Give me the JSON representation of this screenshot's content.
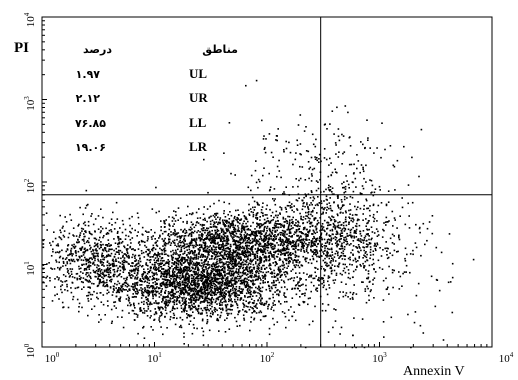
{
  "chart_data": {
    "type": "scatter",
    "xlabel": "Annexin V",
    "ylabel": "PI",
    "x_scale": "log",
    "y_scale": "log",
    "xlim": [
      1,
      10000
    ],
    "ylim": [
      1,
      10000
    ],
    "x_tick_labels": [
      {
        "base": "10",
        "exp": "0"
      },
      {
        "base": "10",
        "exp": "1"
      },
      {
        "base": "10",
        "exp": "2"
      },
      {
        "base": "10",
        "exp": "3"
      },
      {
        "base": "10",
        "exp": "4"
      }
    ],
    "y_tick_labels": [
      {
        "base": "10",
        "exp": "0"
      },
      {
        "base": "10",
        "exp": "1"
      },
      {
        "base": "10",
        "exp": "2"
      },
      {
        "base": "10",
        "exp": "3"
      },
      {
        "base": "10",
        "exp": "4"
      }
    ],
    "quadrant_gate": {
      "x": 300,
      "y": 70
    },
    "legend": {
      "header_percent": "درصد",
      "header_regions": "مناطق",
      "rows": [
        {
          "region": "UL",
          "percent": "۱.۹۷"
        },
        {
          "region": "UR",
          "percent": "۲.۱۲"
        },
        {
          "region": "LL",
          "percent": "۷۶.۸۵"
        },
        {
          "region": "LR",
          "percent": "۱۹.۰۶"
        }
      ]
    },
    "quadrant_percentages": {
      "UL": 1.97,
      "UR": 2.12,
      "LL": 76.85,
      "LR": 19.06
    },
    "populations": [
      {
        "name": "",
        "center_x": 25,
        "center_y": 6,
        "spread_x": 0.42,
        "spread_y": 0.22,
        "count": 2600
      },
      {
        "name": "",
        "center_x": 50,
        "center_y": 20,
        "spread_x": 0.35,
        "spread_y": 0.18,
        "count": 1500
      },
      {
        "name": "",
        "center_x": 3,
        "center_y": 12,
        "spread_x": 0.22,
        "spread_y": 0.25,
        "count": 650
      },
      {
        "name": "",
        "center_x": 350,
        "center_y": 22,
        "spread_x": 0.3,
        "spread_y": 0.3,
        "count": 900
      },
      {
        "name": "",
        "center_x": 250,
        "center_y": 150,
        "spread_x": 0.4,
        "spread_y": 0.35,
        "count": 220
      },
      {
        "name": "",
        "center_x": 800,
        "center_y": 8,
        "spread_x": 0.35,
        "spread_y": 0.4,
        "count": 160
      }
    ],
    "grid": false,
    "dot_color": "#000000"
  }
}
